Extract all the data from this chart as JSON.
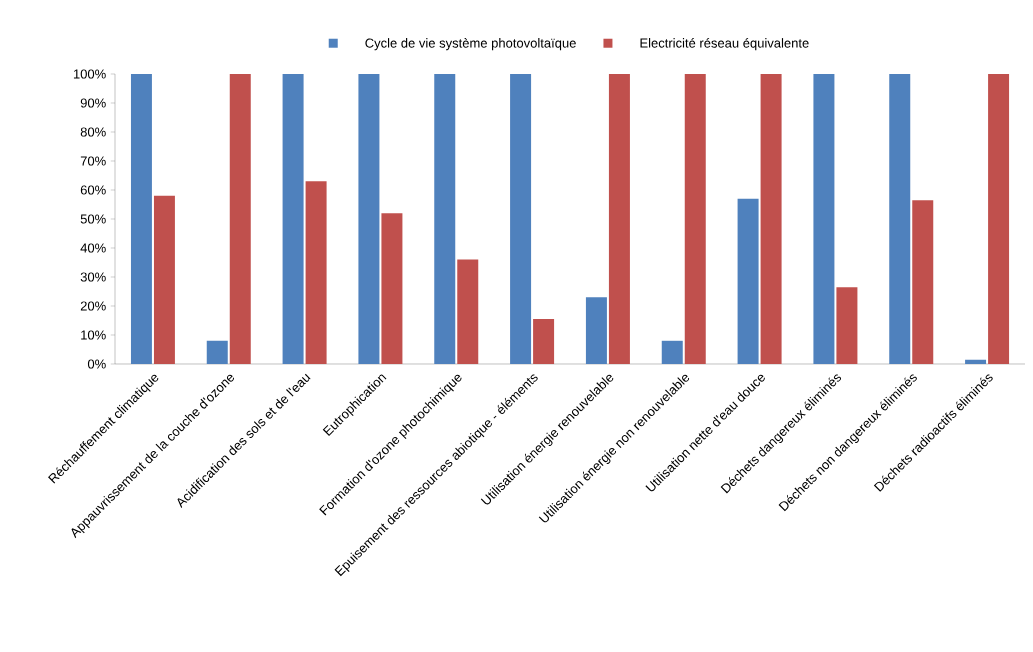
{
  "chart_data": {
    "type": "bar",
    "categories": [
      "Réchauffement climatique",
      "Appauvrissement de la couche d'ozone",
      "Acidification des sols et de l'eau",
      "Eutrophication",
      "Formation d'ozone photochimique",
      "Epuisement des ressources abiotique - éléments",
      "Utilisation énergie renouvelable",
      "Utilisation énergie non renouvelable",
      "Utilisation nette d'eau douce",
      "Déchets dangereux éliminés",
      "Déchets non dangereux éliminés",
      "Déchets radioactifs éliminés"
    ],
    "series": [
      {
        "name": "Cycle de vie système photovoltaïque",
        "color": "#4f81bd",
        "values": [
          100,
          8,
          100,
          100,
          100,
          100,
          23,
          8,
          57,
          100,
          100,
          1.5
        ]
      },
      {
        "name": "Electricité réseau équivalente",
        "color": "#c0504d",
        "values": [
          58,
          100,
          63,
          52,
          36,
          15.5,
          100,
          100,
          100,
          26.5,
          56.5,
          100
        ]
      }
    ],
    "ylim": [
      0,
      100
    ],
    "yticks": [
      {
        "value": 0,
        "label": "0%"
      },
      {
        "value": 10,
        "label": "10%"
      },
      {
        "value": 20,
        "label": "20%"
      },
      {
        "value": 30,
        "label": "30%"
      },
      {
        "value": 40,
        "label": "40%"
      },
      {
        "value": 50,
        "label": "50%"
      },
      {
        "value": 60,
        "label": "60%"
      },
      {
        "value": 70,
        "label": "70%"
      },
      {
        "value": 80,
        "label": "80%"
      },
      {
        "value": 90,
        "label": "90%"
      },
      {
        "value": 100,
        "label": "100%"
      }
    ],
    "grid": false,
    "legend": "top"
  }
}
